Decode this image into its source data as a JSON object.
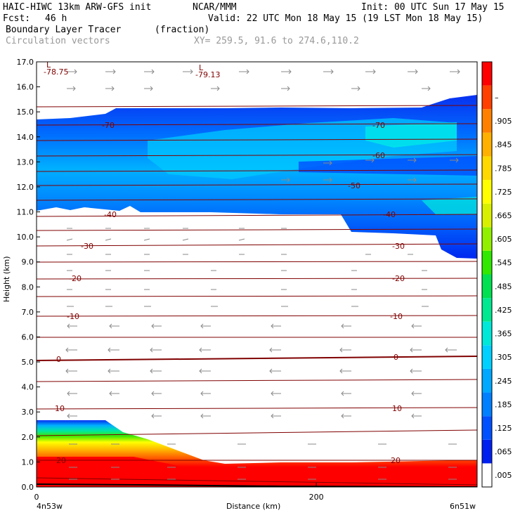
{
  "header": {
    "model": "HAIC-HIWC 13km ARW-GFS init",
    "center": "NCAR/MMM",
    "init": "Init: 00 UTC Sun 17 May 15",
    "fcst_label": "Fcst:",
    "fcst_value": "46 h",
    "valid": "Valid: 22 UTC Mon 18 May 15 (19 LST Mon 18 May 15)",
    "field": "Boundary Layer Tracer",
    "units": "(fraction)",
    "vectors": "Circulation vectors",
    "xy": "XY= 259.5, 91.6 to 274.6,110.2"
  },
  "chart_data": {
    "type": "heatmap",
    "ylabel": "Height (km)",
    "xlabel": "Distance (km)",
    "xlim": [
      0,
      315
    ],
    "ylim": [
      0,
      17
    ],
    "y_ticks": [
      "0.0",
      "1.0",
      "2.0",
      "3.0",
      "4.0",
      "5.0",
      "6.0",
      "7.0",
      "8.0",
      "9.0",
      "10.0",
      "11.0",
      "12.0",
      "13.0",
      "14.0",
      "15.0",
      "16.0",
      "17.0"
    ],
    "x_ticks": [
      {
        "value": 0,
        "label": "0"
      },
      {
        "value": 200,
        "label": "200"
      }
    ],
    "x_end_labels": {
      "left": "4n53w",
      "right": "6n51w"
    },
    "colorbar": {
      "labels": [
        ".005",
        ".065",
        ".125",
        ".185",
        ".245",
        ".305",
        ".365",
        ".425",
        ".485",
        ".545",
        ".605",
        ".665",
        ".725",
        ".785",
        ".845",
        ".905",
        "–"
      ],
      "colors": [
        "#ffffff",
        "#0020f0",
        "#0050ff",
        "#0080ff",
        "#00a8ff",
        "#00d0ff",
        "#00e8d8",
        "#00e890",
        "#00e050",
        "#30e800",
        "#90f000",
        "#d8f000",
        "#ffff00",
        "#ffd800",
        "#ffb000",
        "#ff8000",
        "#ff4000",
        "#ff0000"
      ]
    },
    "temperature_labels": [
      "-78.75",
      "-79.13",
      "-70",
      "-70",
      "-60",
      "-50",
      "-40",
      "-40",
      "-30",
      "-30",
      "-20",
      "-20",
      "-10",
      "-10",
      "0",
      "0",
      "10",
      "10",
      "20",
      "20"
    ],
    "minimum_markers": [
      "L",
      "L"
    ]
  }
}
